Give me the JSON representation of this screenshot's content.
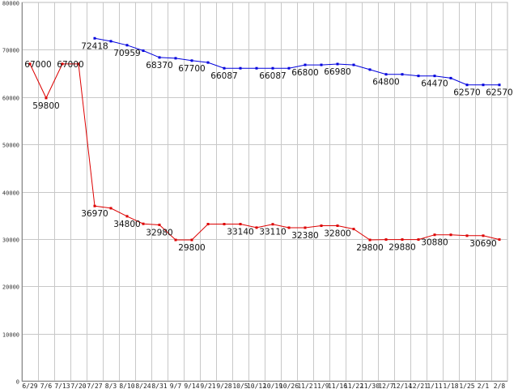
{
  "chart_data": {
    "type": "line",
    "title": "",
    "xlabel": "",
    "ylabel": "",
    "ylim": [
      0,
      80000
    ],
    "yticks": [
      0,
      10000,
      20000,
      30000,
      40000,
      50000,
      60000,
      70000,
      80000
    ],
    "grid": true,
    "legend": "none",
    "categories": [
      "6/29",
      "7/6",
      "7/13",
      "7/20",
      "7/27",
      "8/3",
      "8/10",
      "8/24",
      "8/31",
      "9/7",
      "9/14",
      "9/21",
      "9/28",
      "10/5",
      "10/12",
      "10/19",
      "10/26",
      "11/2",
      "11/9",
      "11/16",
      "11/22",
      "11/30",
      "12/7",
      "12/14",
      "12/21",
      "1/11",
      "1/18",
      "1/25",
      "2/1",
      "2/8"
    ],
    "series": [
      {
        "color": "#0000dd",
        "values": [
          null,
          null,
          null,
          null,
          72418,
          71800,
          70959,
          69800,
          68370,
          68200,
          67700,
          67300,
          66087,
          66087,
          66087,
          66087,
          66087,
          66800,
          66800,
          66980,
          66800,
          65800,
          64800,
          64800,
          64470,
          64470,
          64000,
          62570,
          62570,
          62570
        ],
        "labels": [
          {
            "i": 4,
            "text": "72418",
            "pos": "below"
          },
          {
            "i": 6,
            "text": "70959",
            "pos": "below"
          },
          {
            "i": 8,
            "text": "68370",
            "pos": "below"
          },
          {
            "i": 10,
            "text": "67700",
            "pos": "below"
          },
          {
            "i": 12,
            "text": "66087",
            "pos": "below"
          },
          {
            "i": 15,
            "text": "66087",
            "pos": "below"
          },
          {
            "i": 17,
            "text": "66800",
            "pos": "below"
          },
          {
            "i": 19,
            "text": "66980",
            "pos": "below"
          },
          {
            "i": 22,
            "text": "64800",
            "pos": "below"
          },
          {
            "i": 25,
            "text": "64470",
            "pos": "below"
          },
          {
            "i": 27,
            "text": "62570",
            "pos": "below"
          },
          {
            "i": 29,
            "text": "62570",
            "pos": "below"
          }
        ]
      },
      {
        "color": "#dd0000",
        "values": [
          67000,
          59800,
          67000,
          67000,
          36970,
          36500,
          34800,
          33200,
          32980,
          29800,
          29800,
          33140,
          33140,
          33140,
          32400,
          33110,
          32380,
          32380,
          32800,
          32800,
          32100,
          29800,
          29880,
          29880,
          29880,
          30880,
          30880,
          30690,
          30690,
          29880
        ],
        "labels": [
          {
            "i": 0,
            "text": "67000",
            "pos": "right"
          },
          {
            "i": 1,
            "text": "59800",
            "pos": "below"
          },
          {
            "i": 2,
            "text": "67000",
            "pos": "right"
          },
          {
            "i": 4,
            "text": "36970",
            "pos": "below"
          },
          {
            "i": 6,
            "text": "34800",
            "pos": "below"
          },
          {
            "i": 8,
            "text": "32980",
            "pos": "below"
          },
          {
            "i": 10,
            "text": "29800",
            "pos": "below"
          },
          {
            "i": 13,
            "text": "33140",
            "pos": "below"
          },
          {
            "i": 15,
            "text": "33110",
            "pos": "below"
          },
          {
            "i": 17,
            "text": "32380",
            "pos": "below"
          },
          {
            "i": 19,
            "text": "32800",
            "pos": "below"
          },
          {
            "i": 21,
            "text": "29800",
            "pos": "below"
          },
          {
            "i": 23,
            "text": "29880",
            "pos": "below"
          },
          {
            "i": 25,
            "text": "30880",
            "pos": "below"
          },
          {
            "i": 28,
            "text": "30690",
            "pos": "below"
          }
        ]
      }
    ]
  }
}
